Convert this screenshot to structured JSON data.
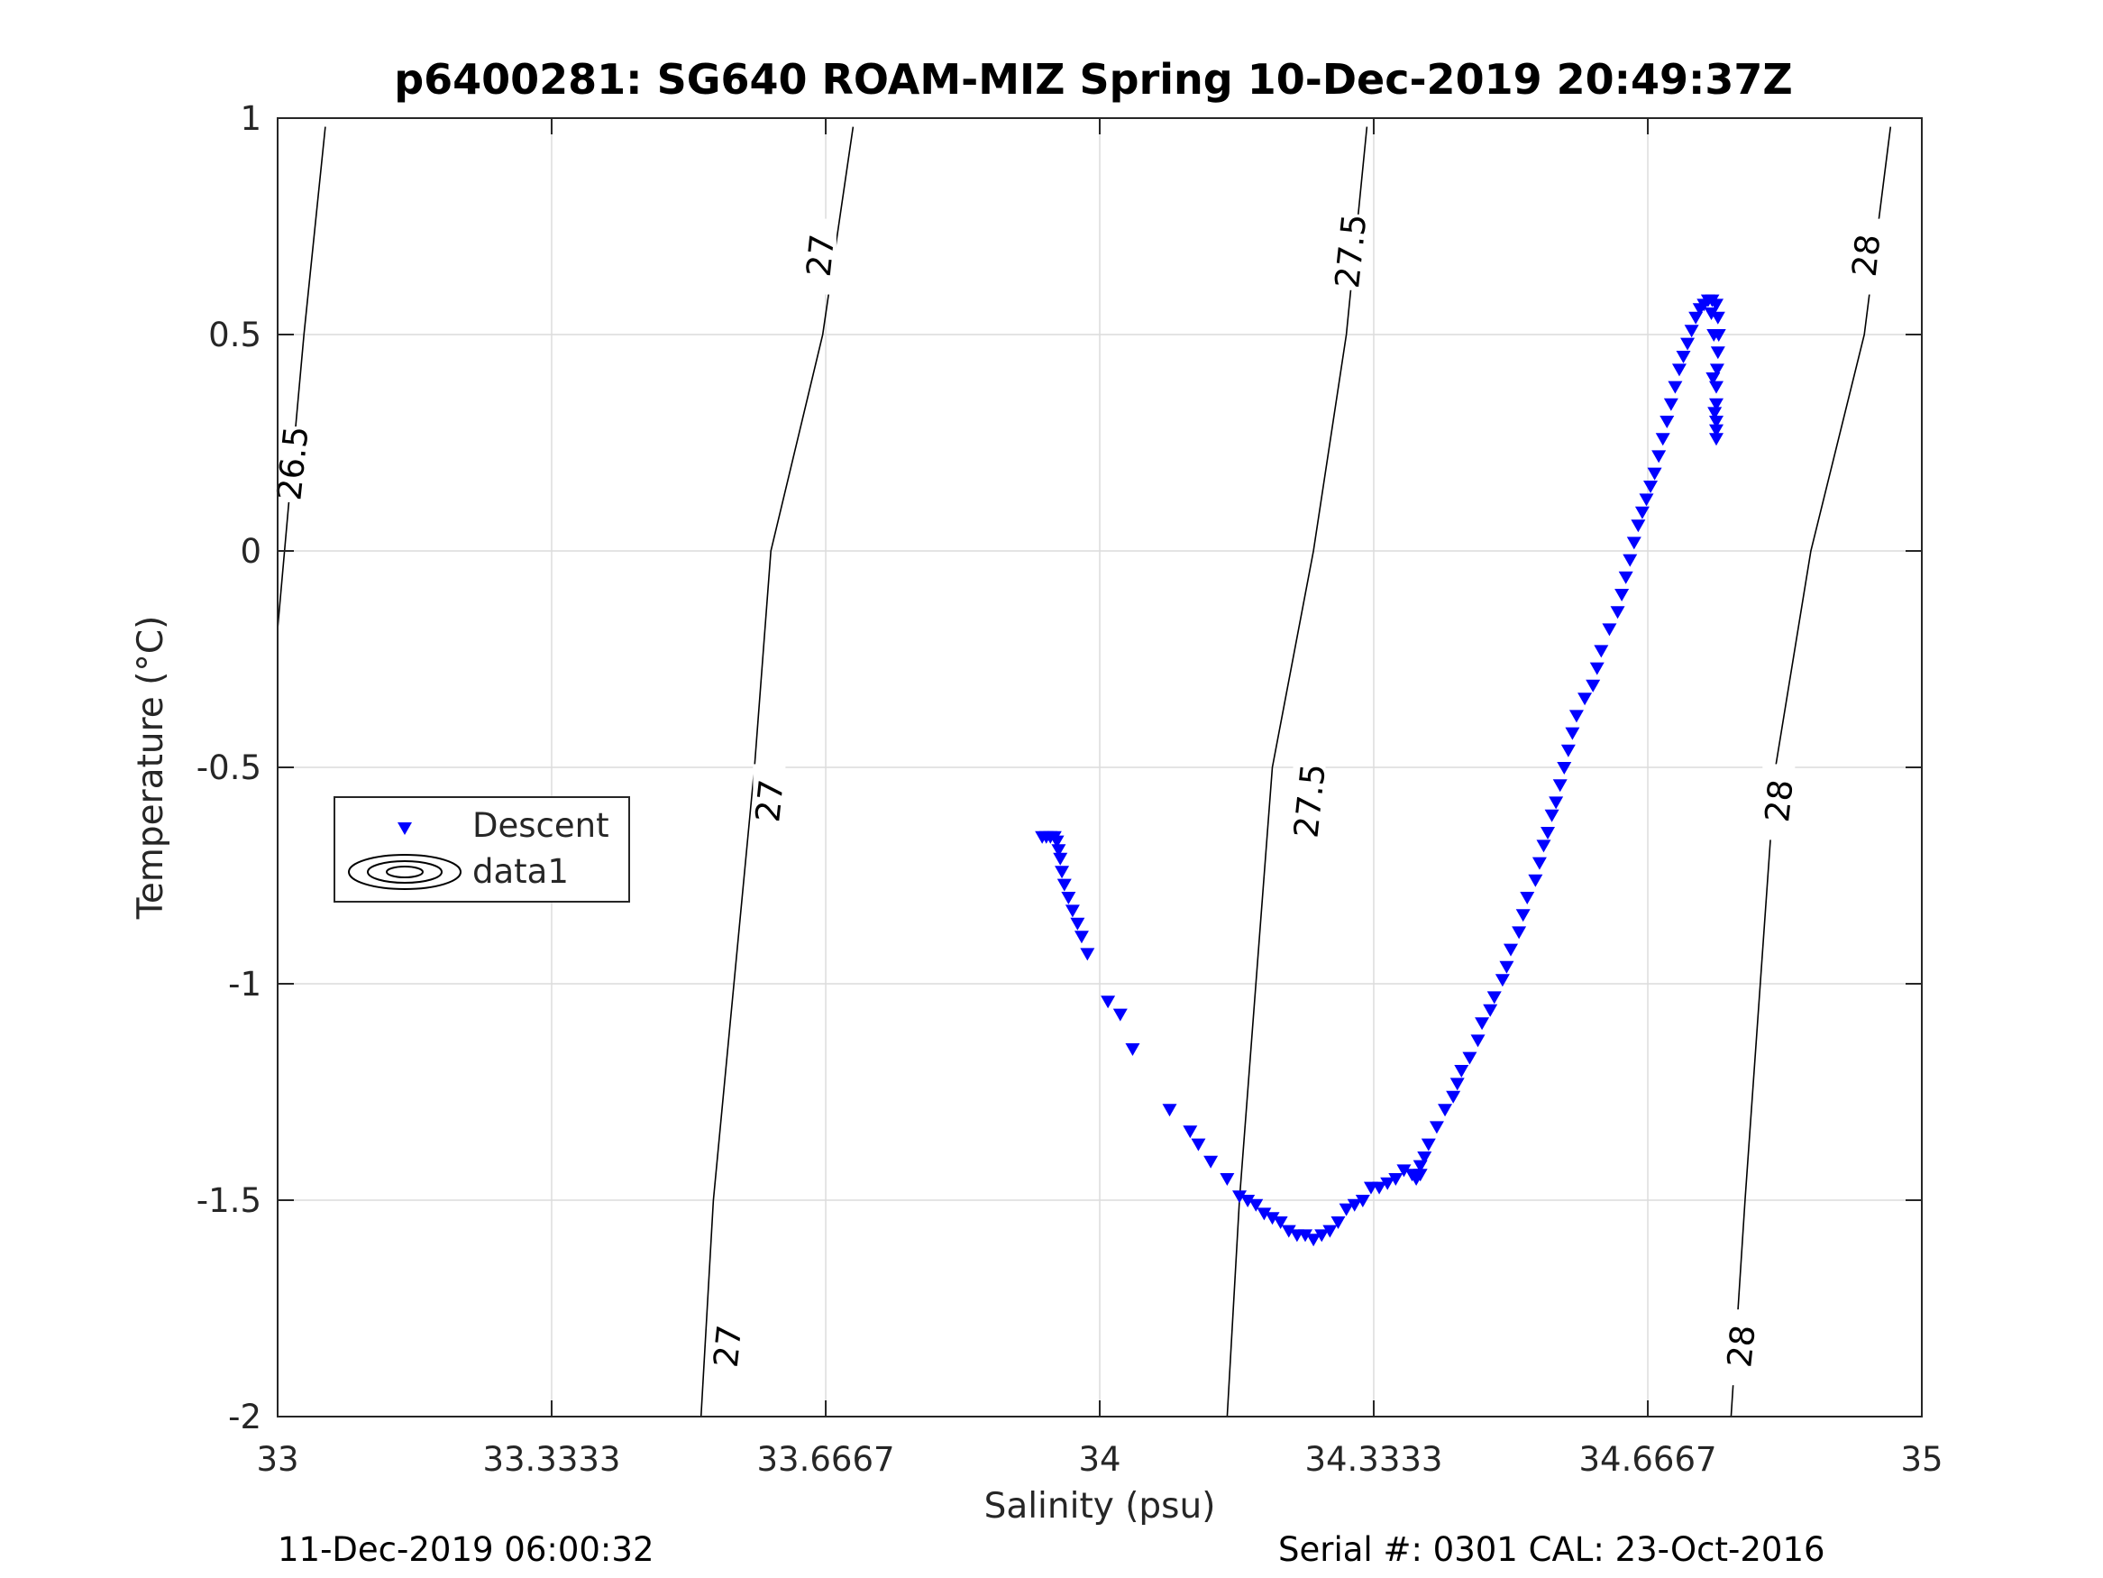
{
  "chart_data": {
    "type": "scatter",
    "title": "p6400281: SG640 ROAM-MIZ Spring 10-Dec-2019 20:49:37Z",
    "xlabel": "Salinity (psu)",
    "ylabel": "Temperature (°C)",
    "xlim": [
      33,
      35
    ],
    "ylim": [
      -2,
      1
    ],
    "xticks": [
      33,
      33.3333,
      33.6667,
      34,
      34.3333,
      34.6667,
      35
    ],
    "xtick_labels": [
      "33",
      "33.3333",
      "33.6667",
      "34",
      "34.3333",
      "34.6667",
      "35"
    ],
    "yticks": [
      1,
      0.5,
      0,
      -0.5,
      -1,
      -1.5,
      -2
    ],
    "ytick_labels": [
      "1",
      "0.5",
      "0",
      "-0.5",
      "-1",
      "-1.5",
      "-2"
    ],
    "grid": true,
    "legend_placement": "middle-left",
    "legend": [
      {
        "label": "Descent",
        "marker": "down-triangle",
        "color": "#0000ff"
      },
      {
        "label": "data1",
        "marker": "contour",
        "color": "#000000"
      }
    ],
    "series": [
      {
        "name": "Descent",
        "marker": "down-triangle",
        "color": "#0000ff",
        "points": [
          [
            33.93,
            -0.66
          ],
          [
            33.935,
            -0.66
          ],
          [
            33.94,
            -0.66
          ],
          [
            33.945,
            -0.66
          ],
          [
            33.948,
            -0.67
          ],
          [
            33.95,
            -0.69
          ],
          [
            33.952,
            -0.71
          ],
          [
            33.954,
            -0.74
          ],
          [
            33.957,
            -0.77
          ],
          [
            33.962,
            -0.8
          ],
          [
            33.967,
            -0.83
          ],
          [
            33.973,
            -0.86
          ],
          [
            33.978,
            -0.89
          ],
          [
            33.985,
            -0.93
          ],
          [
            34.01,
            -1.04
          ],
          [
            34.025,
            -1.07
          ],
          [
            34.04,
            -1.15
          ],
          [
            34.085,
            -1.29
          ],
          [
            34.11,
            -1.34
          ],
          [
            34.12,
            -1.37
          ],
          [
            34.135,
            -1.41
          ],
          [
            34.155,
            -1.45
          ],
          [
            34.17,
            -1.49
          ],
          [
            34.18,
            -1.5
          ],
          [
            34.19,
            -1.51
          ],
          [
            34.2,
            -1.53
          ],
          [
            34.21,
            -1.54
          ],
          [
            34.22,
            -1.55
          ],
          [
            34.23,
            -1.57
          ],
          [
            34.24,
            -1.58
          ],
          [
            34.25,
            -1.58
          ],
          [
            34.26,
            -1.59
          ],
          [
            34.27,
            -1.58
          ],
          [
            34.28,
            -1.57
          ],
          [
            34.29,
            -1.55
          ],
          [
            34.3,
            -1.52
          ],
          [
            34.31,
            -1.51
          ],
          [
            34.32,
            -1.5
          ],
          [
            34.33,
            -1.47
          ],
          [
            34.34,
            -1.47
          ],
          [
            34.35,
            -1.46
          ],
          [
            34.36,
            -1.45
          ],
          [
            34.37,
            -1.43
          ],
          [
            34.38,
            -1.44
          ],
          [
            34.385,
            -1.45
          ],
          [
            34.39,
            -1.44
          ],
          [
            34.39,
            -1.42
          ],
          [
            34.395,
            -1.4
          ],
          [
            34.4,
            -1.37
          ],
          [
            34.41,
            -1.33
          ],
          [
            34.42,
            -1.29
          ],
          [
            34.43,
            -1.26
          ],
          [
            34.435,
            -1.23
          ],
          [
            34.44,
            -1.2
          ],
          [
            34.45,
            -1.17
          ],
          [
            34.46,
            -1.13
          ],
          [
            34.465,
            -1.09
          ],
          [
            34.475,
            -1.06
          ],
          [
            34.48,
            -1.03
          ],
          [
            34.49,
            -0.99
          ],
          [
            34.495,
            -0.96
          ],
          [
            34.5,
            -0.92
          ],
          [
            34.51,
            -0.88
          ],
          [
            34.515,
            -0.84
          ],
          [
            34.52,
            -0.8
          ],
          [
            34.53,
            -0.76
          ],
          [
            34.535,
            -0.72
          ],
          [
            34.54,
            -0.68
          ],
          [
            34.545,
            -0.65
          ],
          [
            34.55,
            -0.61
          ],
          [
            34.555,
            -0.58
          ],
          [
            34.56,
            -0.54
          ],
          [
            34.565,
            -0.5
          ],
          [
            34.57,
            -0.46
          ],
          [
            34.575,
            -0.42
          ],
          [
            34.58,
            -0.38
          ],
          [
            34.59,
            -0.34
          ],
          [
            34.6,
            -0.31
          ],
          [
            34.605,
            -0.27
          ],
          [
            34.61,
            -0.23
          ],
          [
            34.62,
            -0.18
          ],
          [
            34.63,
            -0.14
          ],
          [
            34.635,
            -0.1
          ],
          [
            34.64,
            -0.06
          ],
          [
            34.645,
            -0.02
          ],
          [
            34.65,
            0.02
          ],
          [
            34.655,
            0.06
          ],
          [
            34.66,
            0.09
          ],
          [
            34.665,
            0.12
          ],
          [
            34.67,
            0.15
          ],
          [
            34.675,
            0.18
          ],
          [
            34.68,
            0.22
          ],
          [
            34.685,
            0.26
          ],
          [
            34.69,
            0.3
          ],
          [
            34.695,
            0.34
          ],
          [
            34.7,
            0.38
          ],
          [
            34.705,
            0.42
          ],
          [
            34.71,
            0.45
          ],
          [
            34.715,
            0.48
          ],
          [
            34.72,
            0.51
          ],
          [
            34.725,
            0.54
          ],
          [
            34.73,
            0.56
          ],
          [
            34.735,
            0.57
          ],
          [
            34.74,
            0.58
          ],
          [
            34.745,
            0.58
          ],
          [
            34.75,
            0.57
          ],
          [
            34.752,
            0.54
          ],
          [
            34.753,
            0.5
          ],
          [
            34.752,
            0.46
          ],
          [
            34.751,
            0.42
          ],
          [
            34.75,
            0.38
          ],
          [
            34.75,
            0.34
          ],
          [
            34.75,
            0.3
          ],
          [
            34.75,
            0.28
          ],
          [
            34.75,
            0.26
          ],
          [
            34.748,
            0.32
          ],
          [
            34.746,
            0.4
          ],
          [
            34.747,
            0.5
          ],
          [
            34.744,
            0.55
          ]
        ]
      },
      {
        "name": "data1",
        "type": "contour",
        "color": "#000000",
        "lines": [
          {
            "level": "26.5",
            "points": [
              [
                33.0,
                -0.18
              ],
              [
                33.013,
                0.1
              ],
              [
                33.032,
                0.5
              ],
              [
                33.058,
                0.98
              ]
            ],
            "labels": [
              {
                "text": "26.5",
                "at": [
                  33.018,
                  0.2
                ]
              }
            ]
          },
          {
            "level": "27",
            "points": [
              [
                33.515,
                -2.0
              ],
              [
                33.53,
                -1.5
              ],
              [
                33.58,
                -0.5
              ],
              [
                33.6,
                0.0
              ],
              [
                33.663,
                0.5
              ],
              [
                33.7,
                0.98
              ]
            ],
            "labels": [
              {
                "text": "27",
                "at": [
                  33.66,
                  0.68
                ]
              },
              {
                "text": "27",
                "at": [
                  33.598,
                  -0.58
                ]
              },
              {
                "text": "27",
                "at": [
                  33.547,
                  -1.84
                ]
              }
            ]
          },
          {
            "level": "27.5",
            "points": [
              [
                34.155,
                -2.0
              ],
              [
                34.17,
                -1.5
              ],
              [
                34.21,
                -0.5
              ],
              [
                34.26,
                0.0
              ],
              [
                34.3,
                0.5
              ],
              [
                34.325,
                0.98
              ]
            ],
            "labels": [
              {
                "text": "27.5",
                "at": [
                  34.305,
                  0.69
                ]
              },
              {
                "text": "27.5",
                "at": [
                  34.255,
                  -0.58
                ]
              }
            ]
          },
          {
            "level": "28",
            "points": [
              [
                34.768,
                -2.0
              ],
              [
                34.785,
                -1.5
              ],
              [
                34.822,
                -0.5
              ],
              [
                34.865,
                0.0
              ],
              [
                34.93,
                0.5
              ],
              [
                34.962,
                0.98
              ]
            ],
            "labels": [
              {
                "text": "28",
                "at": [
                  34.932,
                  0.68
                ]
              },
              {
                "text": "28",
                "at": [
                  34.826,
                  -0.58
                ]
              },
              {
                "text": "28",
                "at": [
                  34.78,
                  -1.84
                ]
              }
            ]
          }
        ]
      }
    ]
  },
  "footer": {
    "left": "11-Dec-2019 06:00:32",
    "right": "Serial #: 0301  CAL: 23-Oct-2016"
  }
}
